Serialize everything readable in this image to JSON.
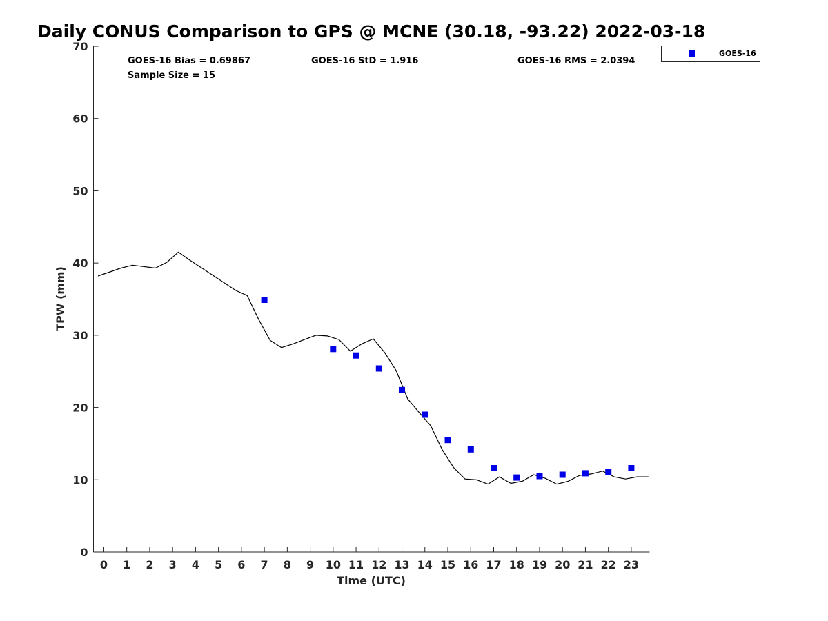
{
  "chart_data": {
    "type": "line+scatter",
    "title": "Daily CONUS Comparison to GPS @ MCNE (30.18, -93.22) 2022-03-18",
    "xlabel": "Time (UTC)",
    "ylabel": "TPW (mm)",
    "xlim": [
      -0.45,
      23.8
    ],
    "ylim": [
      0,
      70
    ],
    "xticks": [
      0,
      1,
      2,
      3,
      4,
      5,
      6,
      7,
      8,
      9,
      10,
      11,
      12,
      13,
      14,
      15,
      16,
      17,
      18,
      19,
      20,
      21,
      22,
      23
    ],
    "yticks": [
      0,
      10,
      20,
      30,
      40,
      50,
      60,
      70
    ],
    "grid": false,
    "legend": {
      "placement": "top-right outside",
      "entries": [
        "GOES-16"
      ]
    },
    "stats": {
      "bias": "GOES-16 Bias = 0.69867",
      "std": "GOES-16 StD = 1.916",
      "rms": "GOES-16 RMS = 2.0394",
      "sample": "Sample Size = 15"
    },
    "series": [
      {
        "name": "GPS",
        "kind": "line",
        "color": "#000000",
        "x": [
          -0.25,
          0.75,
          1.25,
          2.25,
          2.75,
          3.25,
          3.75,
          4.75,
          5.75,
          6.25,
          6.75,
          7.25,
          7.75,
          8.25,
          8.75,
          9.25,
          9.75,
          10.25,
          10.75,
          11.25,
          11.75,
          12.25,
          12.75,
          13.25,
          13.75,
          14.25,
          14.75,
          15.25,
          15.75,
          16.25,
          16.75,
          17.25,
          17.75,
          18.25,
          18.75,
          19.25,
          19.75,
          20.25,
          20.75,
          21.25,
          21.75,
          22.25,
          22.75,
          23.25,
          23.75
        ],
        "y": [
          38.2,
          39.3,
          39.7,
          39.3,
          40.1,
          41.5,
          40.4,
          38.3,
          36.2,
          35.5,
          32.2,
          29.3,
          28.3,
          28.8,
          29.4,
          30.0,
          29.9,
          29.4,
          27.8,
          28.8,
          29.5,
          27.6,
          25.1,
          21.2,
          19.3,
          17.5,
          14.2,
          11.7,
          10.1,
          10.0,
          9.4,
          10.4,
          9.5,
          9.8,
          10.7,
          10.2,
          9.4,
          9.8,
          10.6,
          10.8,
          11.2,
          10.4,
          10.1,
          10.4,
          10.4
        ]
      },
      {
        "name": "GOES-16",
        "kind": "scatter",
        "color": "#0000e6",
        "x": [
          7,
          10,
          11,
          12,
          13,
          14,
          15,
          16,
          17,
          18,
          19,
          20,
          21,
          22,
          23
        ],
        "y": [
          34.9,
          28.1,
          27.2,
          25.4,
          22.4,
          19.0,
          15.5,
          14.2,
          11.6,
          10.3,
          10.5,
          10.7,
          10.9,
          11.1,
          11.6
        ]
      }
    ]
  }
}
